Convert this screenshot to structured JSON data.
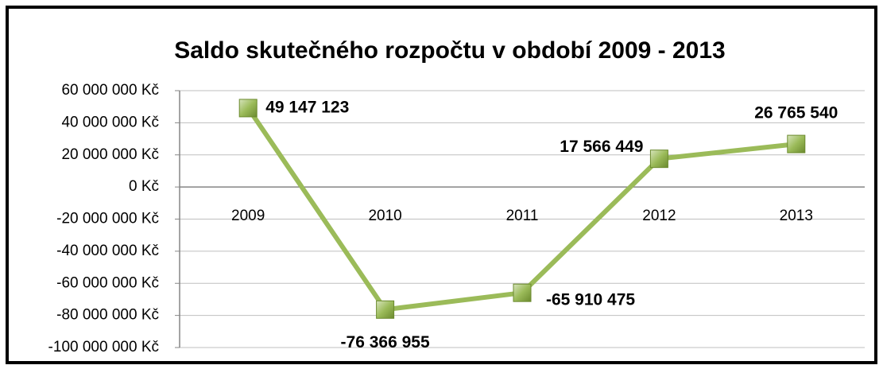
{
  "chart_data": {
    "type": "line",
    "title": "Saldo skutečného rozpočtu v období 2009 - 2013",
    "categories": [
      "2009",
      "2010",
      "2011",
      "2012",
      "2013"
    ],
    "series": [
      {
        "name": "Saldo",
        "color": "#9bbb59",
        "values": [
          49147123,
          -76366955,
          -65910475,
          17566449,
          26765540
        ],
        "value_labels": [
          "49 147 123",
          "-76 366 955",
          "-65 910 475",
          "17 566 449",
          "26 765 540"
        ]
      }
    ],
    "ylim": [
      -100000000,
      60000000
    ],
    "yticks": [
      {
        "value": -100000000,
        "label": "-100 000 000 Kč"
      },
      {
        "value": -80000000,
        "label": "-80 000 000 Kč"
      },
      {
        "value": -60000000,
        "label": "-60 000 000 Kč"
      },
      {
        "value": -40000000,
        "label": "-40 000 000 Kč"
      },
      {
        "value": -20000000,
        "label": "-20 000 000 Kč"
      },
      {
        "value": 0,
        "label": "0 Kč"
      },
      {
        "value": 20000000,
        "label": "20 000 000 Kč"
      },
      {
        "value": 40000000,
        "label": "40 000 000 Kč"
      },
      {
        "value": 60000000,
        "label": "60 000 000 Kč"
      }
    ],
    "grid": true
  }
}
